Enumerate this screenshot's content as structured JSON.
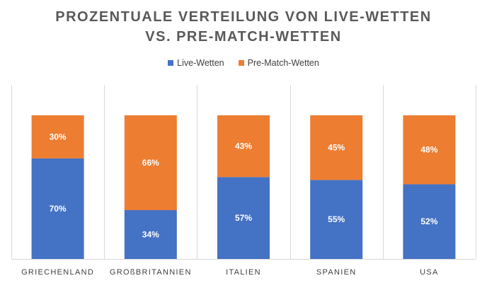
{
  "chart_data": {
    "type": "bar",
    "stacked": true,
    "percent": true,
    "title_lines": [
      "PROZENTUALE VERTEILUNG VON LIVE-WETTEN",
      "VS. PRE-MATCH-WETTEN"
    ],
    "categories": [
      "GRIECHENLAND",
      "GROßBRITANNIEN",
      "ITALIEN",
      "SPANIEN",
      "USA"
    ],
    "series": [
      {
        "name": "Live-Wetten",
        "color": "#4472C4",
        "values": [
          70,
          34,
          57,
          55,
          52
        ],
        "labels": [
          "70%",
          "34%",
          "57%",
          "55%",
          "52%"
        ]
      },
      {
        "name": "Pre-Match-Wetten",
        "color": "#ED7D31",
        "values": [
          30,
          66,
          43,
          45,
          48
        ],
        "labels": [
          "30%",
          "66%",
          "43%",
          "45%",
          "48%"
        ]
      }
    ],
    "ylim": [
      0,
      100
    ],
    "grid": "vertical category separators",
    "legend_position": "top"
  }
}
